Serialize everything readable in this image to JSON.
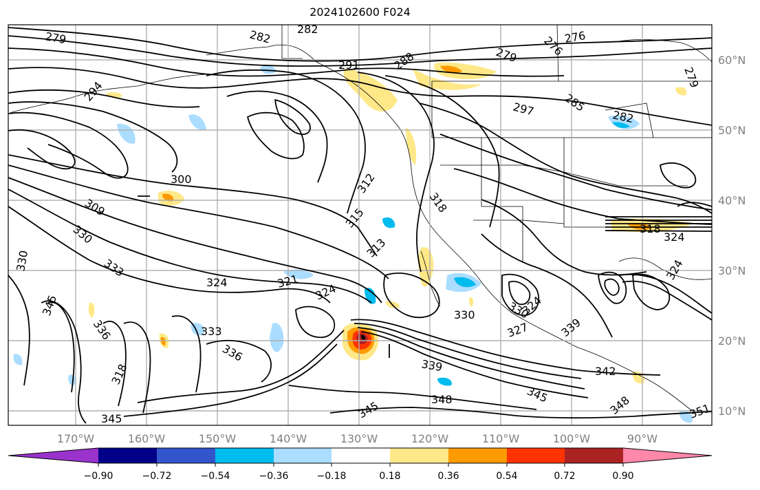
{
  "title": "2024102600 F024",
  "lon_ticks": [
    "170°W",
    "160°W",
    "150°W",
    "140°W",
    "130°W",
    "120°W",
    "110°W",
    "100°W",
    "90°W"
  ],
  "lat_ticks": [
    "60°N",
    "50°N",
    "40°N",
    "30°N",
    "20°N",
    "10°N"
  ],
  "colorbar": {
    "colors": [
      "#9933cc",
      "#000088",
      "#3355cc",
      "#00bbee",
      "#aaddff",
      "#ffffff",
      "#ffe888",
      "#ff9a00",
      "#ff3300",
      "#aa2222",
      "#ff88aa"
    ],
    "labels": [
      "−0.90",
      "−0.72",
      "−0.54",
      "−0.36",
      "−0.18",
      "0.18",
      "0.36",
      "0.54",
      "0.72",
      "0.90"
    ]
  },
  "contour_labels": [
    "279",
    "282",
    "282",
    "276",
    "276",
    "279",
    "291",
    "288",
    "279",
    "294",
    "297",
    "285",
    "282",
    "300",
    "312",
    "318",
    "309",
    "315",
    "318",
    "330",
    "313",
    "324",
    "330",
    "333",
    "324",
    "321",
    "324",
    "345",
    "336",
    "333",
    "330",
    "330",
    "324",
    "327",
    "339",
    "336",
    "339",
    "342",
    "345",
    "348",
    "345",
    "348",
    "345",
    "351",
    "324",
    "318"
  ]
}
